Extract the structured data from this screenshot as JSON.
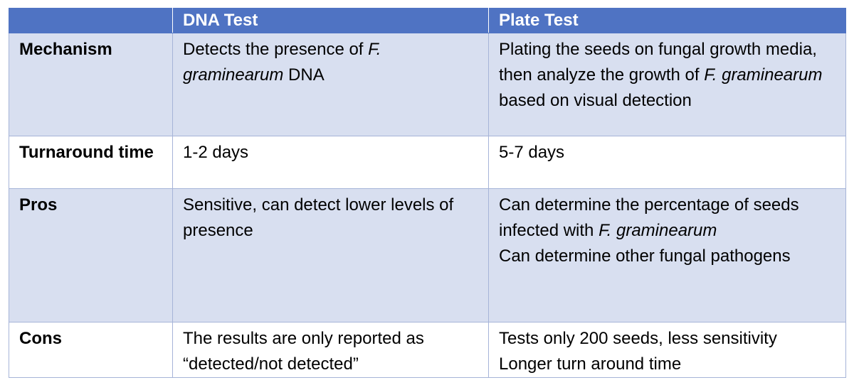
{
  "table": {
    "headers": [
      "",
      "DNA Test",
      "Plate Test"
    ],
    "rows": [
      {
        "label": "Mechanism",
        "dna": {
          "pre": "Detects the presence of ",
          "italic": "F. graminearum",
          "post": " DNA"
        },
        "plate": {
          "pre": "Plating the seeds on fungal growth media, then analyze the growth of ",
          "italic": "F. graminearum",
          "post": " based on visual detection"
        }
      },
      {
        "label": "Turnaround time",
        "dna": {
          "text": "1-2 days"
        },
        "plate": {
          "text": "5-7 days"
        }
      },
      {
        "label": "Pros",
        "dna": {
          "text": "Sensitive, can detect lower levels of presence"
        },
        "plate": {
          "line1_pre": "Can determine the percentage of seeds infected with ",
          "line1_italic": "F. graminearum",
          "line2": "Can determine other fungal pathogens"
        }
      },
      {
        "label": "Cons",
        "dna": {
          "text": "The results are only reported as “detected/not detected”"
        },
        "plate": {
          "line1": "Tests only 200 seeds, less sensitivity",
          "line2": "Longer turn around time"
        }
      }
    ]
  },
  "colors": {
    "header_bg": "#4f73c3",
    "band_bg": "#d8dff0",
    "plain_bg": "#ffffff",
    "border": "#a6b4d8"
  }
}
